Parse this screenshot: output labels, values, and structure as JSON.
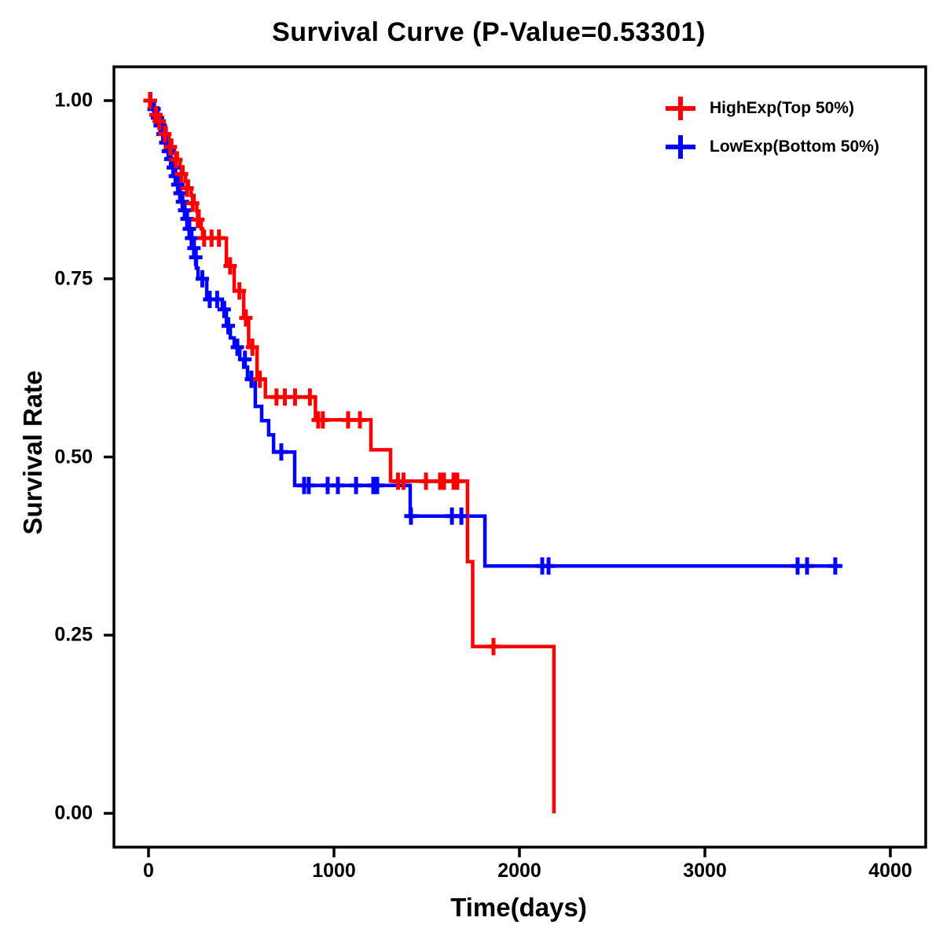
{
  "page": {
    "background": "#ffffff"
  },
  "chart_data": {
    "type": "line",
    "subtype": "kaplan_meier_step_curve",
    "title": "Survival Curve (P-Value=0.53301)",
    "p_value": 0.53301,
    "xlabel": "Time(days)",
    "ylabel": "Survival Rate",
    "xlim": [
      0,
      4000
    ],
    "ylim": [
      0.0,
      1.0
    ],
    "xticks": [
      0,
      1000,
      2000,
      3000,
      4000
    ],
    "xtick_labels": [
      "0",
      "1000",
      "2000",
      "3000",
      "4000"
    ],
    "yticks": [
      0.0,
      0.25,
      0.5,
      0.75,
      1.0
    ],
    "ytick_labels": [
      "0.00",
      "0.25",
      "0.50",
      "0.75",
      "1.00"
    ],
    "grid": false,
    "legend_position": "top-right-inside",
    "marker": "plus-censor-tick",
    "series": [
      {
        "name": "HighExp(Top 50%)",
        "color": "#FF0000",
        "steps": [
          [
            0,
            1.0
          ],
          [
            25,
            0.99
          ],
          [
            50,
            0.98
          ],
          [
            65,
            0.971
          ],
          [
            80,
            0.962
          ],
          [
            95,
            0.953
          ],
          [
            110,
            0.944
          ],
          [
            125,
            0.935
          ],
          [
            140,
            0.926
          ],
          [
            155,
            0.917
          ],
          [
            170,
            0.907
          ],
          [
            185,
            0.897
          ],
          [
            200,
            0.887
          ],
          [
            215,
            0.877
          ],
          [
            230,
            0.867
          ],
          [
            245,
            0.856
          ],
          [
            260,
            0.845
          ],
          [
            272,
            0.833
          ],
          [
            284,
            0.82
          ],
          [
            292,
            0.807
          ],
          [
            420,
            0.768
          ],
          [
            462,
            0.733
          ],
          [
            513,
            0.695
          ],
          [
            540,
            0.654
          ],
          [
            585,
            0.609
          ],
          [
            630,
            0.584
          ],
          [
            900,
            0.552
          ],
          [
            1199,
            0.51
          ],
          [
            1305,
            0.466
          ],
          [
            1720,
            0.353
          ],
          [
            1748,
            0.234
          ],
          [
            2186,
            0.0
          ]
        ],
        "censor_marks": [
          [
            8,
            1.0
          ],
          [
            40,
            0.98
          ],
          [
            58,
            0.971
          ],
          [
            88,
            0.953
          ],
          [
            118,
            0.935
          ],
          [
            148,
            0.917
          ],
          [
            178,
            0.897
          ],
          [
            208,
            0.877
          ],
          [
            238,
            0.856
          ],
          [
            266,
            0.833
          ],
          [
            300,
            0.807
          ],
          [
            340,
            0.807
          ],
          [
            380,
            0.807
          ],
          [
            440,
            0.768
          ],
          [
            490,
            0.733
          ],
          [
            525,
            0.695
          ],
          [
            560,
            0.654
          ],
          [
            600,
            0.609
          ],
          [
            690,
            0.584
          ],
          [
            735,
            0.584
          ],
          [
            790,
            0.584
          ],
          [
            870,
            0.584
          ],
          [
            915,
            0.552
          ],
          [
            940,
            0.552
          ],
          [
            1076,
            0.552
          ],
          [
            1140,
            0.552
          ],
          [
            1345,
            0.466
          ],
          [
            1375,
            0.466
          ],
          [
            1496,
            0.466
          ],
          [
            1572,
            0.466
          ],
          [
            1593,
            0.466
          ],
          [
            1645,
            0.466
          ],
          [
            1665,
            0.466
          ],
          [
            1860,
            0.234
          ]
        ]
      },
      {
        "name": "LowExp(Bottom 50%)",
        "color": "#0000FF",
        "steps": [
          [
            0,
            1.0
          ],
          [
            20,
            0.988
          ],
          [
            40,
            0.976
          ],
          [
            55,
            0.965
          ],
          [
            70,
            0.953
          ],
          [
            85,
            0.941
          ],
          [
            100,
            0.929
          ],
          [
            112,
            0.918
          ],
          [
            125,
            0.906
          ],
          [
            138,
            0.894
          ],
          [
            150,
            0.882
          ],
          [
            163,
            0.87
          ],
          [
            175,
            0.858
          ],
          [
            188,
            0.846
          ],
          [
            200,
            0.834
          ],
          [
            213,
            0.82
          ],
          [
            225,
            0.807
          ],
          [
            238,
            0.793
          ],
          [
            250,
            0.78
          ],
          [
            258,
            0.765
          ],
          [
            267,
            0.75
          ],
          [
            314,
            0.721
          ],
          [
            398,
            0.707
          ],
          [
            420,
            0.684
          ],
          [
            441,
            0.667
          ],
          [
            462,
            0.654
          ],
          [
            492,
            0.637
          ],
          [
            513,
            0.626
          ],
          [
            534,
            0.609
          ],
          [
            576,
            0.571
          ],
          [
            610,
            0.551
          ],
          [
            648,
            0.531
          ],
          [
            674,
            0.507
          ],
          [
            788,
            0.46
          ],
          [
            1411,
            0.417
          ],
          [
            1814,
            0.347
          ],
          [
            3742,
            0.347
          ]
        ],
        "censor_marks": [
          [
            10,
            1.0
          ],
          [
            30,
            0.988
          ],
          [
            48,
            0.976
          ],
          [
            63,
            0.965
          ],
          [
            78,
            0.953
          ],
          [
            93,
            0.941
          ],
          [
            107,
            0.929
          ],
          [
            120,
            0.918
          ],
          [
            133,
            0.906
          ],
          [
            145,
            0.894
          ],
          [
            158,
            0.882
          ],
          [
            170,
            0.87
          ],
          [
            183,
            0.858
          ],
          [
            195,
            0.846
          ],
          [
            208,
            0.834
          ],
          [
            220,
            0.82
          ],
          [
            232,
            0.807
          ],
          [
            245,
            0.793
          ],
          [
            255,
            0.78
          ],
          [
            290,
            0.75
          ],
          [
            330,
            0.721
          ],
          [
            370,
            0.721
          ],
          [
            408,
            0.707
          ],
          [
            430,
            0.684
          ],
          [
            479,
            0.654
          ],
          [
            520,
            0.637
          ],
          [
            555,
            0.609
          ],
          [
            716,
            0.507
          ],
          [
            839,
            0.46
          ],
          [
            864,
            0.46
          ],
          [
            966,
            0.46
          ],
          [
            1021,
            0.46
          ],
          [
            1119,
            0.46
          ],
          [
            1212,
            0.46
          ],
          [
            1233,
            0.46
          ],
          [
            1415,
            0.417
          ],
          [
            1636,
            0.417
          ],
          [
            1687,
            0.417
          ],
          [
            2123,
            0.347
          ],
          [
            2157,
            0.347
          ],
          [
            3500,
            0.347
          ],
          [
            3551,
            0.347
          ],
          [
            3703,
            0.347
          ]
        ]
      }
    ]
  }
}
